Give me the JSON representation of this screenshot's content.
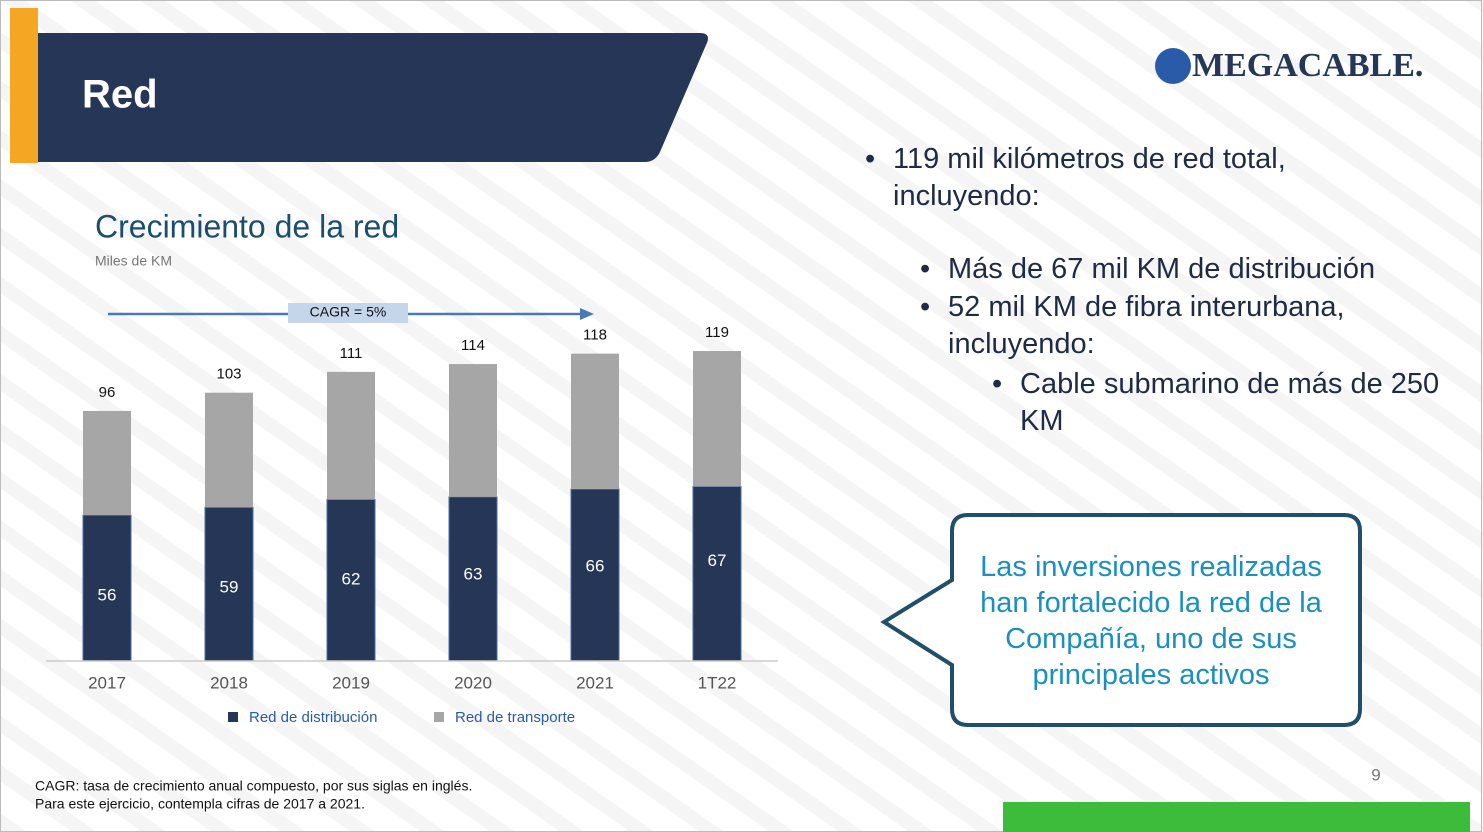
{
  "header": {
    "title": "Red",
    "logo": "MEGACABLE."
  },
  "chart_data": {
    "type": "stacked_bar",
    "title": "Crecimiento de la red",
    "subtitle": "Miles de KM",
    "categories": [
      "2017",
      "2018",
      "2019",
      "2020",
      "2021",
      "1T22"
    ],
    "series": [
      {
        "name": "Red de distribución",
        "color": "#253656",
        "values": [
          56,
          59,
          62,
          63,
          66,
          67
        ]
      },
      {
        "name": "Red de transporte",
        "color": "#a6a6a6",
        "values": [
          40,
          44,
          49,
          51,
          52,
          52
        ]
      }
    ],
    "totals": [
      96,
      103,
      111,
      114,
      118,
      119
    ],
    "annotation": "CAGR = 5%",
    "ylim": [
      0,
      125
    ],
    "grid": false,
    "legend": "bottom"
  },
  "bullets": [
    "119 mil kilómetros de red total, incluyendo:",
    "Más de 67 mil KM de distribución",
    "52 mil KM de fibra interurbana, incluyendo:",
    "Cable submarino de más de 250 KM"
  ],
  "callout": "Las inversiones realizadas han fortalecido la red de la Compañía, uno de sus principales activos",
  "footnote": [
    "CAGR: tasa de crecimiento anual compuesto, por sus siglas en inglés.",
    "Para este ejercicio, contempla cifras de 2017 a 2021."
  ],
  "page_number": "9"
}
